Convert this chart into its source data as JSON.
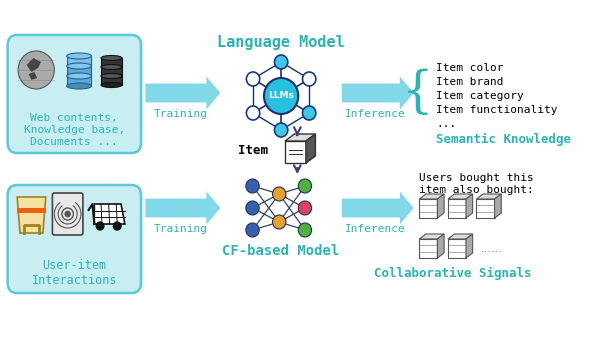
{
  "bg_color": "#ffffff",
  "teal": "#2ab5b5",
  "dark_teal": "#2ab5b5",
  "box_fill": "#c8eef2",
  "box_edge": "#5ac8d8",
  "arrow_color": "#80d8e8",
  "arrow_edge": "#80d8e8",
  "training_color": "#2ab5b5",
  "inference_color": "#2ab5b5",
  "top_box_text": "Web contents,\nKnowledge base,\nDocuments ...",
  "bottom_box_text": "User-item\nInteractions",
  "llm_label": "LLMs",
  "item_label": "Item",
  "cf_label": "CF-based Model",
  "lm_label": "Language Model",
  "training_label": "Training",
  "inference_label": "Inference",
  "semantic_title": "Semantic Knowledge",
  "semantic_items": [
    "Item color",
    "Item brand",
    "Item category",
    "Item functionality",
    "..."
  ],
  "collab_title": "Collaborative Signals",
  "collab_text": "Users bought this\nitem also bought:",
  "figsize": [
    5.96,
    3.48
  ],
  "dpi": 100
}
